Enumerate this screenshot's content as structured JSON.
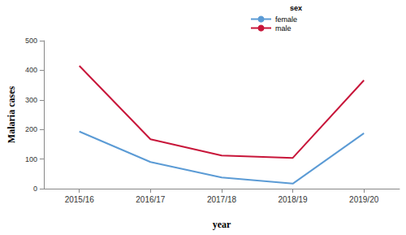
{
  "chart_data": {
    "type": "line",
    "x_label": "year",
    "y_label": "Malaria cases",
    "legend_title": "sex",
    "legend": "top-right",
    "grid": false,
    "categories": [
      "2015/16",
      "2016/17",
      "2017/18",
      "2018/19",
      "2019/20"
    ],
    "series": [
      {
        "name": "female",
        "color": "#5b9bd5",
        "values": [
          193,
          90,
          38,
          17,
          187
        ]
      },
      {
        "name": "male",
        "color": "#c8163a",
        "values": [
          415,
          167,
          112,
          104,
          366
        ]
      }
    ],
    "ylim": [
      0,
      500
    ],
    "yticks": [
      0,
      100,
      200,
      300,
      400,
      500
    ]
  }
}
